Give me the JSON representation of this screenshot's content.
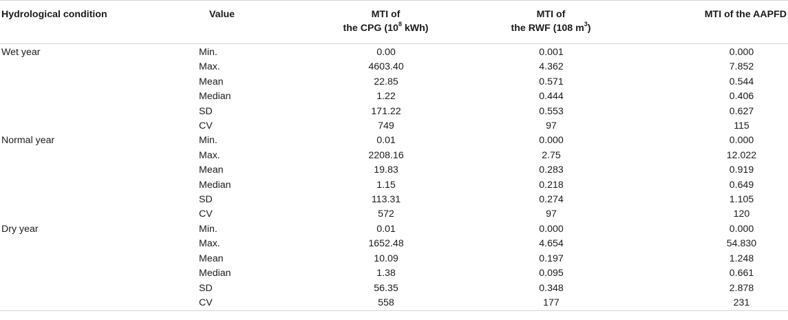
{
  "header": {
    "condition": "Hydrological condition",
    "value": "Value",
    "cpg_line1": "MTI of",
    "cpg_line2_pre": "the CPG (10",
    "cpg_sup": "8",
    "cpg_line2_post": " kWh)",
    "rwf_line1": "MTI of",
    "rwf_line2_pre": "the RWF (108 m",
    "rwf_sup": "3",
    "rwf_line2_post": ")",
    "aapfd": "MTI of the AAPFD"
  },
  "rows": [
    {
      "condition": "Wet year",
      "stat": "Min.",
      "cpg": "0.00",
      "rwf": "0.001",
      "aapfd": "0.000"
    },
    {
      "condition": "",
      "stat": "Max.",
      "cpg": "4603.40",
      "rwf": "4.362",
      "aapfd": "7.852"
    },
    {
      "condition": "",
      "stat": "Mean",
      "cpg": "22.85",
      "rwf": "0.571",
      "aapfd": "0.544"
    },
    {
      "condition": "",
      "stat": "Median",
      "cpg": "1.22",
      "rwf": "0.444",
      "aapfd": "0.406"
    },
    {
      "condition": "",
      "stat": "SD",
      "cpg": "171.22",
      "rwf": "0.553",
      "aapfd": "0.627"
    },
    {
      "condition": "",
      "stat": "CV",
      "cpg": "749",
      "rwf": "97",
      "aapfd": "115"
    },
    {
      "condition": "Normal year",
      "stat": "Min.",
      "cpg": "0.01",
      "rwf": "0.000",
      "aapfd": "0.000"
    },
    {
      "condition": "",
      "stat": "Max.",
      "cpg": "2208.16",
      "rwf": "2.75",
      "aapfd": "12.022"
    },
    {
      "condition": "",
      "stat": "Mean",
      "cpg": "19.83",
      "rwf": "0.283",
      "aapfd": "0.919"
    },
    {
      "condition": "",
      "stat": "Median",
      "cpg": "1.15",
      "rwf": "0.218",
      "aapfd": "0.649"
    },
    {
      "condition": "",
      "stat": "SD",
      "cpg": "113.31",
      "rwf": "0.274",
      "aapfd": "1.105"
    },
    {
      "condition": "",
      "stat": "CV",
      "cpg": "572",
      "rwf": "97",
      "aapfd": "120"
    },
    {
      "condition": "Dry year",
      "stat": "Min.",
      "cpg": "0.01",
      "rwf": "0.000",
      "aapfd": "0.000"
    },
    {
      "condition": "",
      "stat": "Max.",
      "cpg": "1652.48",
      "rwf": "4.654",
      "aapfd": "54.830"
    },
    {
      "condition": "",
      "stat": "Mean",
      "cpg": "10.09",
      "rwf": "0.197",
      "aapfd": "1.248"
    },
    {
      "condition": "",
      "stat": "Median",
      "cpg": "1.38",
      "rwf": "0.095",
      "aapfd": "0.661"
    },
    {
      "condition": "",
      "stat": "SD",
      "cpg": "56.35",
      "rwf": "0.348",
      "aapfd": "2.878"
    },
    {
      "condition": "",
      "stat": "CV",
      "cpg": "558",
      "rwf": "177",
      "aapfd": "231"
    }
  ]
}
